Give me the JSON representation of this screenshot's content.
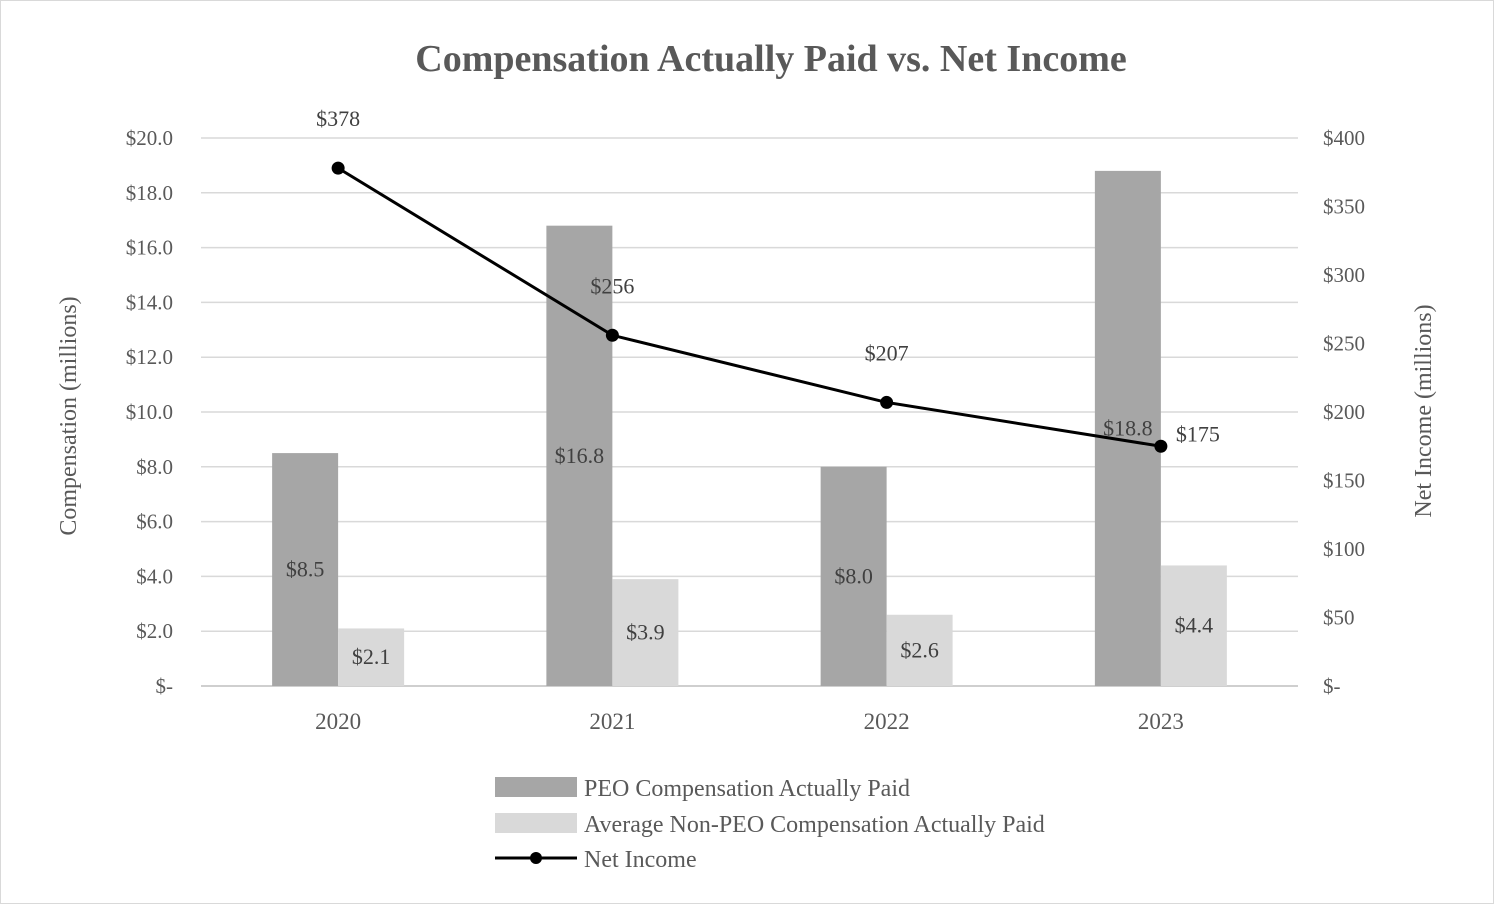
{
  "chart_data": {
    "type": "bar",
    "title": "Compensation Actually Paid vs. Net Income",
    "categories": [
      "2020",
      "2021",
      "2022",
      "2023"
    ],
    "ylabel": "Compensation (millions)",
    "y2label": "Net Income (millions)",
    "ylim": [
      0,
      20
    ],
    "y2lim": [
      0,
      400
    ],
    "yticks": [
      "$-",
      "$2.0",
      "$4.0",
      "$6.0",
      "$8.0",
      "$10.0",
      "$12.0",
      "$14.0",
      "$16.0",
      "$18.0",
      "$20.0"
    ],
    "y2ticks": [
      "$-",
      "$50",
      "$100",
      "$150",
      "$200",
      "$250",
      "$300",
      "$350",
      "$400"
    ],
    "series": [
      {
        "name": "PEO Compensation Actually Paid",
        "kind": "bar",
        "axis": "left",
        "color": "#a6a6a6",
        "values": [
          8.5,
          16.8,
          8.0,
          18.8
        ],
        "labels": [
          "$8.5",
          "$16.8",
          "$8.0",
          "$18.8"
        ]
      },
      {
        "name": "Average Non-PEO Compensation Actually Paid",
        "kind": "bar",
        "axis": "left",
        "color": "#d9d9d9",
        "values": [
          2.1,
          3.9,
          2.6,
          4.4
        ],
        "labels": [
          "$2.1",
          "$3.9",
          "$2.6",
          "$4.4"
        ]
      },
      {
        "name": "Net Income",
        "kind": "line",
        "axis": "right",
        "color": "#000000",
        "values": [
          378,
          256,
          207,
          175
        ],
        "labels": [
          "$378",
          "$256",
          "$207",
          "$175"
        ]
      }
    ],
    "legend_position": "bottom"
  }
}
